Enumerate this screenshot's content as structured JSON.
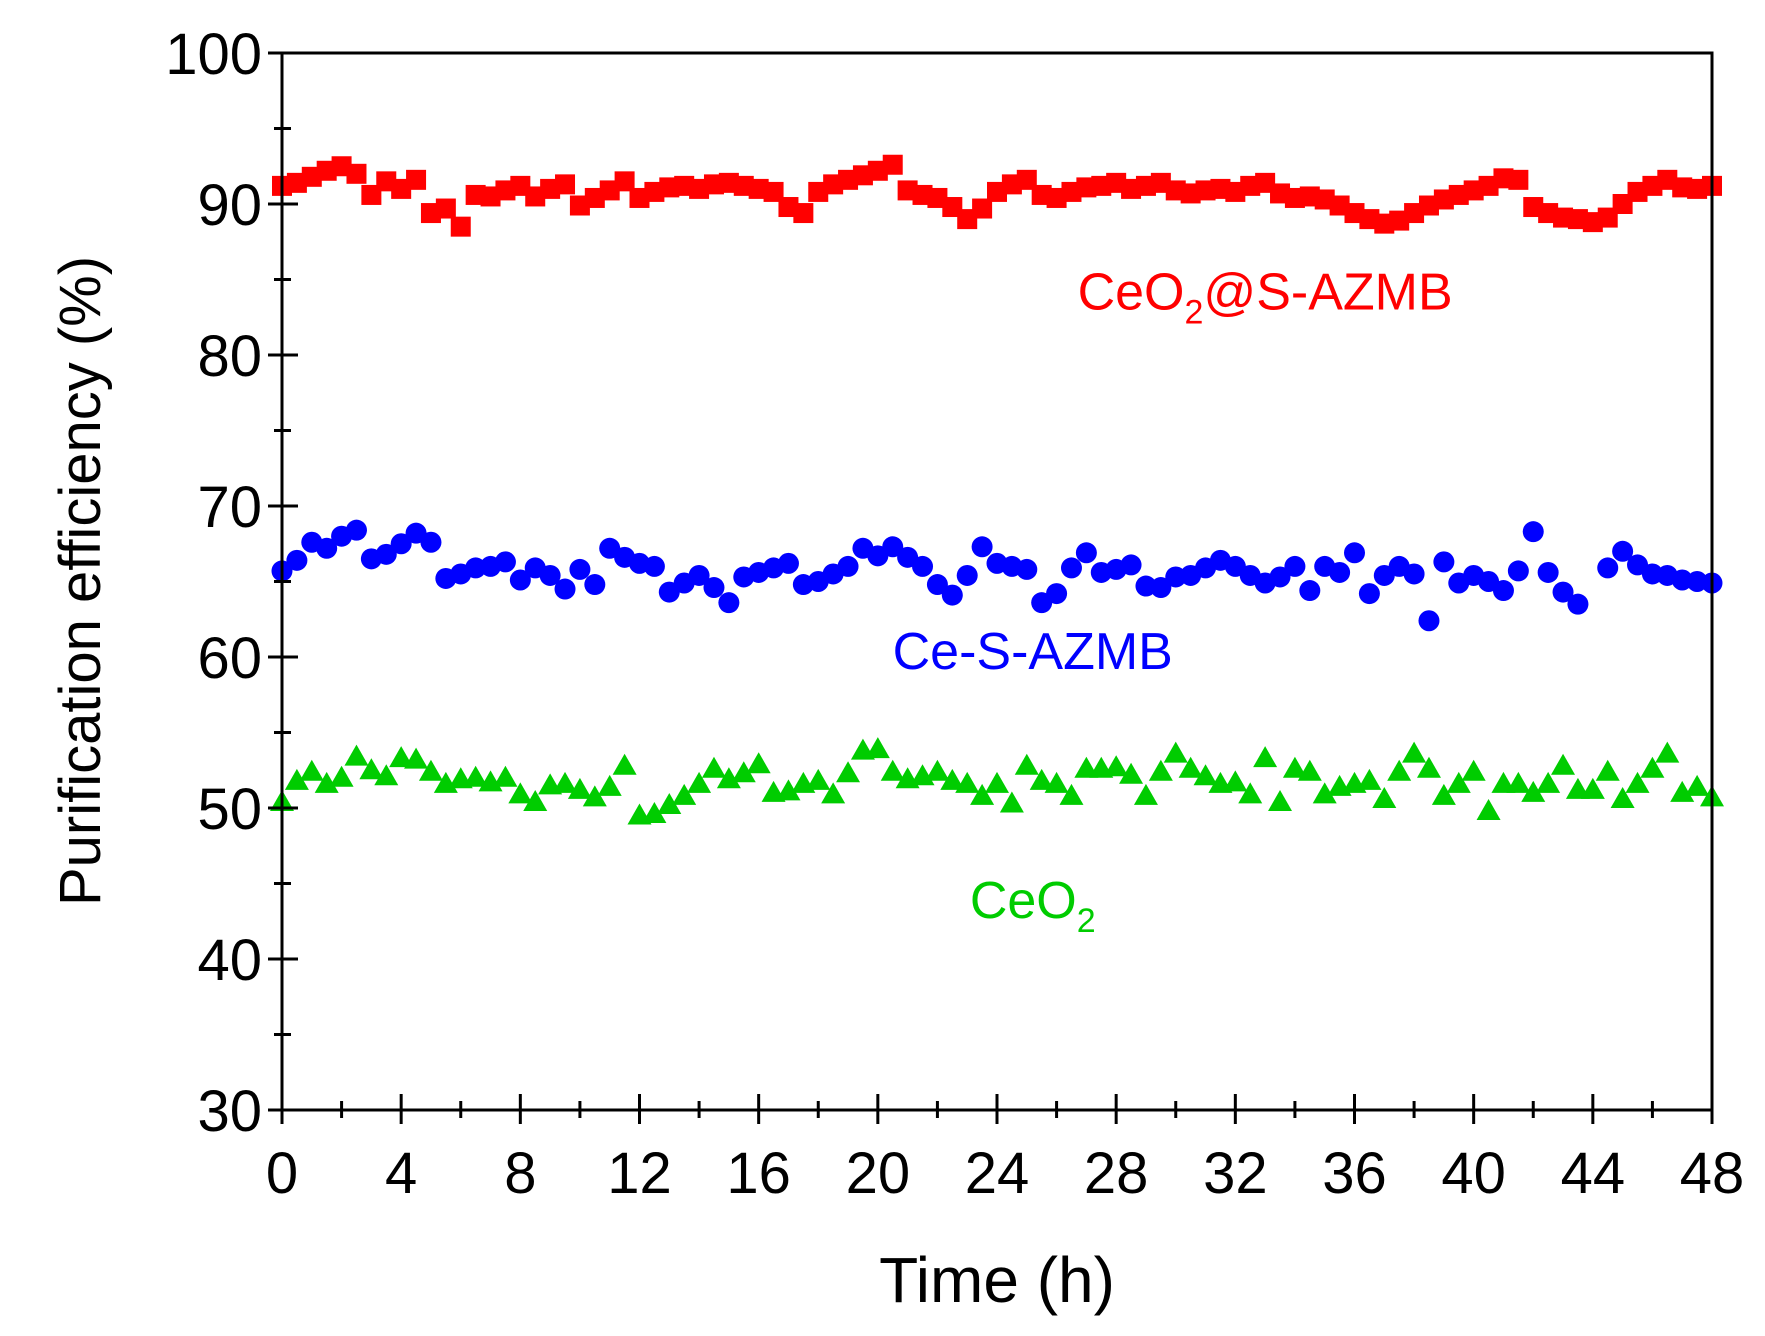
{
  "chart_data": {
    "type": "scatter",
    "title": "",
    "xlabel": "Time (h)",
    "ylabel": "Purification efficiency (%)",
    "xlim": [
      0,
      48
    ],
    "ylim": [
      30,
      100
    ],
    "x_ticks": [
      "0",
      "4",
      "8",
      "12",
      "16",
      "20",
      "24",
      "28",
      "32",
      "36",
      "40",
      "44",
      "48"
    ],
    "y_ticks": [
      "30",
      "40",
      "50",
      "60",
      "70",
      "80",
      "90",
      "100"
    ],
    "grid": false,
    "legend": "inline labels",
    "series": [
      {
        "name": "CeO2@S-AZMB",
        "label_main": "CeO",
        "label_sub": "2",
        "label_rest": "@S-AZMB",
        "label_at": [
          33.0,
          83.0
        ],
        "marker": "square",
        "color": "#ff0000",
        "x": [
          0,
          0.5,
          1,
          1.5,
          2,
          2.5,
          3,
          3.5,
          4,
          4.5,
          5,
          5.5,
          6,
          6.5,
          7,
          7.5,
          8,
          8.5,
          9,
          9.5,
          10,
          10.5,
          11,
          11.5,
          12,
          12.5,
          13,
          13.5,
          14,
          14.5,
          15,
          15.5,
          16,
          16.5,
          17,
          17.5,
          18,
          18.5,
          19,
          19.5,
          20,
          20.5,
          21,
          21.5,
          22,
          22.5,
          23,
          23.5,
          24,
          24.5,
          25,
          25.5,
          26,
          26.5,
          27,
          27.5,
          28,
          28.5,
          29,
          29.5,
          30,
          30.5,
          31,
          31.5,
          32,
          32.5,
          33,
          33.5,
          34,
          34.5,
          35,
          35.5,
          36,
          36.5,
          37,
          37.5,
          38,
          38.5,
          39,
          39.5,
          40,
          40.5,
          41,
          41.5,
          42,
          42.5,
          43,
          43.5,
          44,
          44.5,
          45,
          45.5,
          46,
          46.5,
          47,
          47.5,
          48
        ],
        "y": [
          91.2,
          91.4,
          91.8,
          92.2,
          92.5,
          92.0,
          90.6,
          91.5,
          91.0,
          91.6,
          89.4,
          89.7,
          88.5,
          90.6,
          90.5,
          90.9,
          91.2,
          90.5,
          91.0,
          91.3,
          89.9,
          90.4,
          90.9,
          91.5,
          90.4,
          90.8,
          91.1,
          91.2,
          91.0,
          91.3,
          91.4,
          91.2,
          91.0,
          90.8,
          89.8,
          89.4,
          90.8,
          91.3,
          91.6,
          91.9,
          92.2,
          92.6,
          90.9,
          90.6,
          90.4,
          89.8,
          89.0,
          89.7,
          90.8,
          91.3,
          91.6,
          90.6,
          90.4,
          90.8,
          91.1,
          91.2,
          91.4,
          91.0,
          91.2,
          91.4,
          90.9,
          90.7,
          90.9,
          91.0,
          90.8,
          91.2,
          91.4,
          90.7,
          90.4,
          90.5,
          90.3,
          89.9,
          89.4,
          89.0,
          88.7,
          88.9,
          89.4,
          89.9,
          90.3,
          90.6,
          90.9,
          91.2,
          91.7,
          91.6,
          89.8,
          89.4,
          89.1,
          89.0,
          88.8,
          89.1,
          90.0,
          90.8,
          91.2,
          91.6,
          91.1,
          91.0,
          91.2
        ]
      },
      {
        "name": "Ce-S-AZMB",
        "label_main": "Ce-S-AZMB",
        "label_at": [
          25.2,
          59.2
        ],
        "marker": "circle",
        "color": "#0000ff",
        "x": [
          0,
          0.5,
          1,
          1.5,
          2,
          2.5,
          3,
          3.5,
          4,
          4.5,
          5,
          5.5,
          6,
          6.5,
          7,
          7.5,
          8,
          8.5,
          9,
          9.5,
          10,
          10.5,
          11,
          11.5,
          12,
          12.5,
          13,
          13.5,
          14,
          14.5,
          15,
          15.5,
          16,
          16.5,
          17,
          17.5,
          18,
          18.5,
          19,
          19.5,
          20,
          20.5,
          21,
          21.5,
          22,
          22.5,
          23,
          23.5,
          24,
          24.5,
          25,
          25.5,
          26,
          26.5,
          27,
          27.5,
          28,
          28.5,
          29,
          29.5,
          30,
          30.5,
          31,
          31.5,
          32,
          32.5,
          33,
          33.5,
          34,
          34.5,
          35,
          35.5,
          36,
          36.5,
          37,
          37.5,
          38,
          38.5,
          39,
          39.5,
          40,
          40.5,
          41,
          41.5,
          42,
          42.5,
          43,
          43.5,
          44,
          44.5,
          45,
          45.5,
          46,
          46.5,
          47,
          47.5,
          48
        ],
        "y": [
          65.7,
          66.4,
          67.6,
          67.2,
          68.0,
          68.4,
          66.5,
          66.8,
          67.5,
          68.2,
          67.6,
          65.2,
          65.5,
          65.9,
          66.0,
          66.3,
          65.1,
          65.9,
          65.4,
          64.5,
          65.8,
          64.8,
          67.2,
          66.6,
          66.2,
          66.0,
          64.3,
          64.9,
          65.4,
          64.6,
          63.6,
          65.3,
          65.6,
          65.9,
          66.2,
          64.8,
          65.0,
          65.5,
          66.0,
          67.2,
          66.7,
          67.3,
          66.6,
          66.0,
          64.8,
          64.1,
          65.4,
          67.3,
          66.2,
          66.0,
          65.8,
          63.6,
          64.2,
          65.9,
          66.9,
          65.6,
          65.8,
          66.1,
          64.7,
          64.6,
          65.3,
          65.4,
          65.9,
          66.4,
          66.0,
          65.4,
          64.9,
          65.3,
          66.0,
          64.4,
          66.0,
          65.6,
          66.9,
          64.2,
          65.4,
          66.0,
          65.5,
          62.4,
          66.3,
          64.9,
          65.4,
          65.0,
          64.4,
          65.7,
          68.3,
          65.6,
          64.3,
          63.5,
          null,
          65.9,
          67.0,
          66.1,
          65.5,
          65.4,
          65.1,
          65.0,
          64.9
        ]
      },
      {
        "name": "CeO2",
        "label_main": "CeO",
        "label_sub": "2",
        "label_at": [
          25.2,
          42.7
        ],
        "marker": "triangle",
        "color": "#00cc00",
        "x": [
          0,
          0.5,
          1,
          1.5,
          2,
          2.5,
          3,
          3.5,
          4,
          4.5,
          5,
          5.5,
          6,
          6.5,
          7,
          7.5,
          8,
          8.5,
          9,
          9.5,
          10,
          10.5,
          11,
          11.5,
          12,
          12.5,
          13,
          13.5,
          14,
          14.5,
          15,
          15.5,
          16,
          16.5,
          17,
          17.5,
          18,
          18.5,
          19,
          19.5,
          20,
          20.5,
          21,
          21.5,
          22,
          22.5,
          23,
          23.5,
          24,
          24.5,
          25,
          25.5,
          26,
          26.5,
          27,
          27.5,
          28,
          28.5,
          29,
          29.5,
          30,
          30.5,
          31,
          31.5,
          32,
          32.5,
          33,
          33.5,
          34,
          34.5,
          35,
          35.5,
          36,
          36.5,
          37,
          37.5,
          38,
          38.5,
          39,
          39.5,
          40,
          40.5,
          41,
          41.5,
          42,
          42.5,
          43,
          43.5,
          44,
          44.5,
          45,
          45.5,
          46,
          46.5,
          47,
          47.5,
          48
        ],
        "y": [
          50.4,
          51.8,
          52.4,
          51.6,
          52.0,
          53.4,
          52.5,
          52.1,
          53.3,
          53.2,
          52.4,
          51.6,
          51.9,
          52.0,
          51.7,
          52.0,
          50.9,
          50.4,
          51.5,
          51.6,
          51.2,
          50.7,
          51.4,
          52.8,
          49.5,
          49.6,
          50.2,
          50.8,
          51.6,
          52.6,
          51.9,
          52.3,
          52.9,
          51.0,
          51.1,
          51.6,
          51.8,
          50.9,
          52.3,
          53.8,
          53.9,
          52.4,
          51.9,
          52.1,
          52.4,
          51.8,
          51.6,
          50.8,
          51.6,
          50.3,
          52.8,
          51.8,
          51.6,
          50.8,
          52.6,
          52.6,
          52.7,
          52.2,
          50.8,
          52.4,
          53.6,
          52.6,
          52.1,
          51.6,
          51.7,
          50.9,
          53.3,
          50.4,
          52.6,
          52.4,
          50.9,
          51.4,
          51.6,
          51.8,
          50.6,
          52.4,
          53.6,
          52.6,
          50.8,
          51.6,
          52.4,
          49.8,
          51.6,
          51.6,
          51.0,
          51.6,
          52.8,
          51.2,
          51.2,
          52.4,
          50.6,
          51.6,
          52.6,
          53.6,
          51.0,
          51.4,
          50.7
        ]
      }
    ]
  }
}
